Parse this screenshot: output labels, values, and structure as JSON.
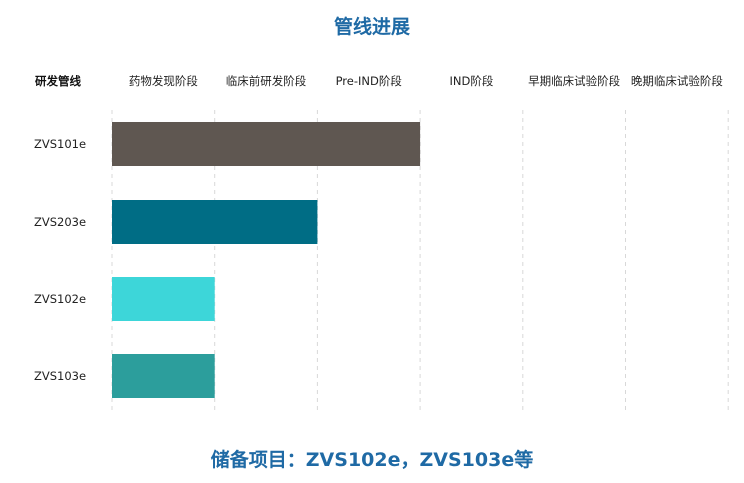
{
  "chart_data": {
    "type": "bar",
    "orientation": "horizontal",
    "title": "管线进展",
    "row_header": "研发管线",
    "stages": [
      "药物发现阶段",
      "临床前研发阶段",
      "Pre-IND阶段",
      "IND阶段",
      "早期临床试验阶段",
      "晚期临床试验阶段"
    ],
    "categories": [
      "ZVS101e",
      "ZVS203e",
      "ZVS102e",
      "ZVS103e"
    ],
    "values": [
      3,
      2,
      1,
      1
    ],
    "colors": [
      "#5f5751",
      "#006d85",
      "#3dd6d9",
      "#2c9e9c"
    ],
    "xlim": [
      0,
      6
    ],
    "grid": true,
    "footnote": "储备项目：ZVS102e，ZVS103e等"
  }
}
